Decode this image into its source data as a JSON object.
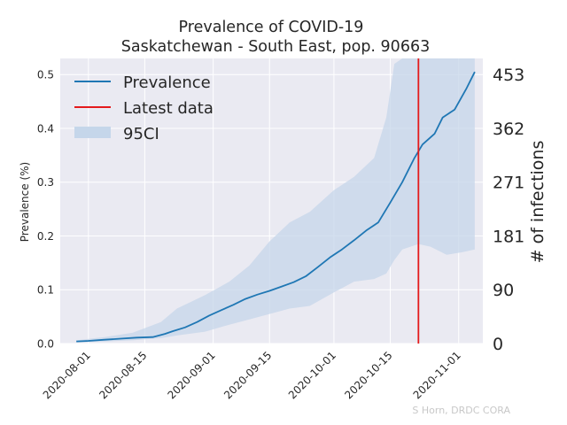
{
  "chart_data": {
    "type": "line",
    "title": "Prevalence of COVID-19",
    "subtitle": "Saskatchewan - South East, pop. 90663",
    "ylabel": "Prevalence (%)",
    "ylabel_right": "# of infections",
    "xlim": [
      "2020-07-25",
      "2020-11-07"
    ],
    "ylim": [
      0,
      0.53
    ],
    "x_ticks": [
      "2020-08-01",
      "2020-08-15",
      "2020-09-01",
      "2020-09-15",
      "2020-10-01",
      "2020-10-15",
      "2020-11-01"
    ],
    "y_ticks": [
      "0.0",
      "0.1",
      "0.2",
      "0.3",
      "0.4",
      "0.5"
    ],
    "y_ticks_values": [
      0,
      0.1,
      0.2,
      0.3,
      0.4,
      0.5
    ],
    "right_ticks": [
      "0",
      "90",
      "181",
      "271",
      "362",
      "453"
    ],
    "right_ticks_values": [
      0,
      0.1,
      0.2,
      0.3,
      0.4,
      0.5
    ],
    "grid": true,
    "legend_position": "top-left",
    "legend": {
      "prevalence": "Prevalence",
      "latest": "Latest data",
      "ci": "95CI"
    },
    "latest_data_date": "2020-10-22",
    "credit": "S Horn, DRDC CORA",
    "colors": {
      "line": "#1f77b4",
      "latest": "#e41a1c",
      "ci": "#c5d6ea",
      "background": "#eaeaf2",
      "grid": "#ffffff"
    },
    "series": [
      {
        "name": "Prevalence",
        "points": [
          [
            "2020-07-29",
            0.004
          ],
          [
            "2020-08-01",
            0.005
          ],
          [
            "2020-08-05",
            0.007
          ],
          [
            "2020-08-09",
            0.009
          ],
          [
            "2020-08-13",
            0.011
          ],
          [
            "2020-08-17",
            0.012
          ],
          [
            "2020-08-20",
            0.018
          ],
          [
            "2020-08-22",
            0.023
          ],
          [
            "2020-08-25",
            0.03
          ],
          [
            "2020-08-28",
            0.04
          ],
          [
            "2020-08-31",
            0.052
          ],
          [
            "2020-09-03",
            0.062
          ],
          [
            "2020-09-06",
            0.072
          ],
          [
            "2020-09-09",
            0.083
          ],
          [
            "2020-09-12",
            0.091
          ],
          [
            "2020-09-15",
            0.098
          ],
          [
            "2020-09-18",
            0.106
          ],
          [
            "2020-09-21",
            0.114
          ],
          [
            "2020-09-24",
            0.125
          ],
          [
            "2020-09-27",
            0.142
          ],
          [
            "2020-09-30",
            0.16
          ],
          [
            "2020-10-03",
            0.175
          ],
          [
            "2020-10-06",
            0.192
          ],
          [
            "2020-10-09",
            0.21
          ],
          [
            "2020-10-12",
            0.225
          ],
          [
            "2020-10-15",
            0.262
          ],
          [
            "2020-10-18",
            0.3
          ],
          [
            "2020-10-21",
            0.345
          ],
          [
            "2020-10-23",
            0.37
          ],
          [
            "2020-10-26",
            0.39
          ],
          [
            "2020-10-28",
            0.42
          ],
          [
            "2020-10-31",
            0.435
          ],
          [
            "2020-11-03",
            0.475
          ],
          [
            "2020-11-05",
            0.505
          ]
        ]
      }
    ],
    "ci_band": {
      "name": "95CI",
      "points": [
        [
          "2020-07-29",
          0.002,
          0.006
        ],
        [
          "2020-08-05",
          0.004,
          0.012
        ],
        [
          "2020-08-12",
          0.006,
          0.02
        ],
        [
          "2020-08-19",
          0.01,
          0.04
        ],
        [
          "2020-08-23",
          0.015,
          0.065
        ],
        [
          "2020-08-30",
          0.022,
          0.09
        ],
        [
          "2020-09-05",
          0.035,
          0.115
        ],
        [
          "2020-09-10",
          0.045,
          0.145
        ],
        [
          "2020-09-15",
          0.055,
          0.19
        ],
        [
          "2020-09-20",
          0.065,
          0.225
        ],
        [
          "2020-09-25",
          0.07,
          0.245
        ],
        [
          "2020-10-01",
          0.095,
          0.285
        ],
        [
          "2020-10-06",
          0.115,
          0.31
        ],
        [
          "2020-10-11",
          0.12,
          0.345
        ],
        [
          "2020-10-14",
          0.13,
          0.42
        ],
        [
          "2020-10-16",
          0.155,
          0.52
        ],
        [
          "2020-10-18",
          0.175,
          0.53
        ],
        [
          "2020-10-22",
          0.185,
          0.53
        ],
        [
          "2020-10-25",
          0.18,
          0.53
        ],
        [
          "2020-10-29",
          0.165,
          0.53
        ],
        [
          "2020-11-02",
          0.17,
          0.53
        ],
        [
          "2020-11-05",
          0.175,
          0.53
        ]
      ]
    }
  }
}
